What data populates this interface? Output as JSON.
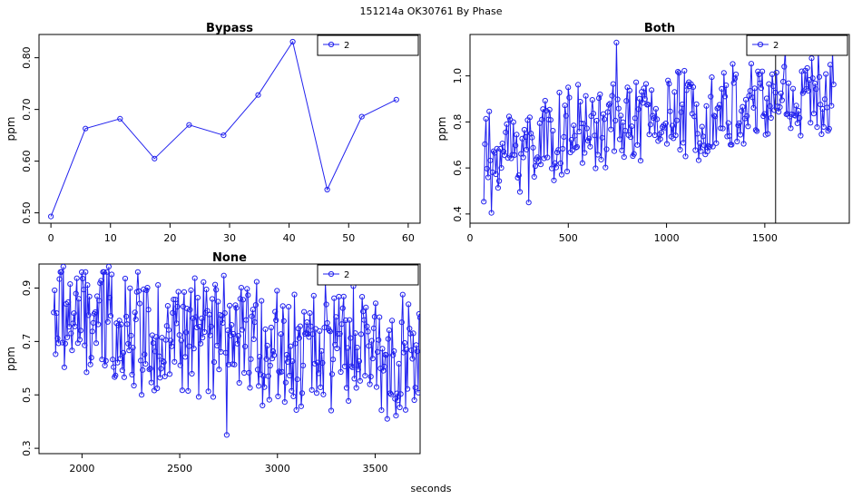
{
  "figure": {
    "title": "151214a    OK30761   By Phase",
    "xlabel": "seconds",
    "line_color": "#2222ee"
  },
  "chart_data": [
    {
      "type": "line",
      "title": "Bypass",
      "ylabel": "ppm",
      "legend": {
        "entry": "2",
        "placement": "top-right"
      },
      "xlim": [
        -2,
        62
      ],
      "ylim": [
        0.48,
        0.845
      ],
      "xticks": [
        0,
        10,
        20,
        30,
        40,
        50,
        60
      ],
      "yticks": [
        0.5,
        0.6,
        0.7,
        0.8
      ],
      "ytick_labels": [
        "0.50",
        "0.60",
        "0.70",
        "0.80"
      ],
      "series": [
        {
          "x": [
            0,
            5.8,
            11.6,
            17.4,
            23.2,
            29,
            34.8,
            40.6,
            46.4,
            52.2,
            58
          ],
          "y": [
            0.493,
            0.663,
            0.682,
            0.605,
            0.67,
            0.65,
            0.728,
            0.831,
            0.545,
            0.686,
            0.719
          ]
        }
      ]
    },
    {
      "type": "line",
      "title": "Both",
      "ylabel": "ppm",
      "legend": {
        "entry": "2",
        "placement": "top-right"
      },
      "xlim": [
        0,
        1930
      ],
      "ylim": [
        0.36,
        1.18
      ],
      "xticks": [
        0,
        500,
        1000,
        1500
      ],
      "yticks": [
        0.4,
        0.6,
        0.8,
        1.0
      ],
      "ytick_labels": [
        "0.4",
        "0.6",
        "0.8",
        "1.0"
      ],
      "vline_x": 1555,
      "x_range": [
        70,
        1850
      ],
      "n_points": 320,
      "trend": {
        "start": 0.62,
        "end": 0.92,
        "spread": 0.22
      },
      "pinned": [
        {
          "x": 110,
          "y": 0.405
        },
        {
          "x": 300,
          "y": 0.45
        },
        {
          "x": 745,
          "y": 1.145
        },
        {
          "x": 1605,
          "y": 1.12
        },
        {
          "x": 1840,
          "y": 0.87
        }
      ]
    },
    {
      "type": "line",
      "title": "None",
      "ylabel": "ppm",
      "legend": {
        "entry": "2",
        "placement": "top-right"
      },
      "xlim": [
        1780,
        3730
      ],
      "ylim": [
        0.28,
        0.99
      ],
      "xticks": [
        2000,
        2500,
        3000,
        3500
      ],
      "yticks": [
        0.3,
        0.5,
        0.7,
        0.9
      ],
      "ytick_labels": [
        "0.3",
        "0.5",
        "0.7",
        "0.9"
      ],
      "x_range": [
        1855,
        3730
      ],
      "n_points": 380,
      "trend": {
        "start": 0.82,
        "end": 0.64,
        "spread": 0.26
      },
      "pinned": [
        {
          "x": 1905,
          "y": 0.98
        },
        {
          "x": 2135,
          "y": 0.98
        },
        {
          "x": 2740,
          "y": 0.35
        },
        {
          "x": 3245,
          "y": 0.92
        },
        {
          "x": 3560,
          "y": 0.41
        }
      ]
    }
  ]
}
